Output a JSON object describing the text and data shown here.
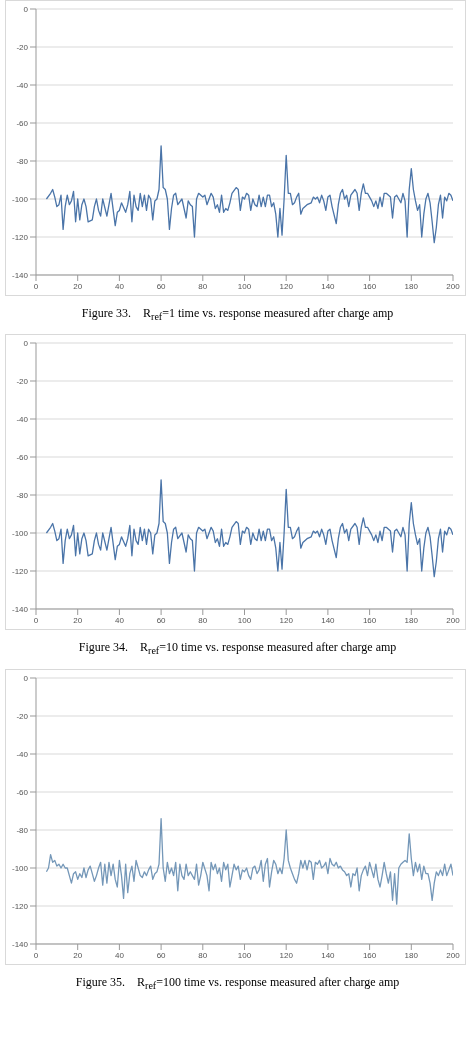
{
  "chart_data": [
    {
      "type": "line",
      "title": "Figure 33.    R$_{ref}$=1 time vs. response measured after charge amp",
      "color": "#4a74a8",
      "marker": "none",
      "line_style": "solid",
      "grid": "y",
      "legend": false,
      "xlim": [
        0,
        200
      ],
      "xticks": [
        0,
        20,
        40,
        60,
        80,
        100,
        120,
        140,
        160,
        180,
        200
      ],
      "ylim": [
        -140,
        0
      ],
      "yticks": [
        -140,
        -120,
        -100,
        -80,
        -60,
        -40,
        -20,
        0
      ],
      "x": [
        5,
        7,
        8,
        9,
        10,
        11,
        12,
        13,
        14,
        15,
        16,
        17,
        18,
        19,
        20,
        21,
        22,
        23,
        24,
        25,
        27,
        28,
        29,
        30,
        31,
        32,
        34,
        35,
        36,
        38,
        39,
        40,
        41,
        43,
        44,
        45,
        46,
        47,
        48,
        49,
        50,
        51,
        52,
        53,
        54,
        55,
        56,
        57,
        58,
        59,
        60,
        61,
        62,
        63,
        64,
        65,
        66,
        67,
        68,
        70,
        72,
        73,
        74,
        75,
        76,
        77,
        78,
        80,
        81,
        82,
        84,
        85,
        86,
        87,
        88,
        89,
        90,
        91,
        92,
        93,
        94,
        96,
        97,
        98,
        99,
        100,
        101,
        102,
        103,
        104,
        105,
        106,
        107,
        108,
        109,
        110,
        111,
        112,
        113,
        114,
        115,
        116,
        117,
        118,
        119,
        120,
        121,
        122,
        123,
        124,
        125,
        126,
        127,
        128,
        130,
        132,
        133,
        134,
        135,
        136,
        137,
        138,
        139,
        140,
        141,
        142,
        144,
        145,
        146,
        147,
        148,
        149,
        150,
        151,
        153,
        154,
        155,
        156,
        157,
        158,
        159,
        160,
        161,
        162,
        163,
        164,
        165,
        166,
        167,
        168,
        170,
        171,
        172,
        173,
        175,
        176,
        177,
        178,
        179,
        180,
        181,
        182,
        183,
        184,
        185,
        186,
        187,
        188,
        189,
        190,
        191,
        192,
        193,
        194,
        195,
        196,
        197,
        198,
        199,
        200
      ],
      "values": [
        -100,
        -97,
        -95,
        -99,
        -104,
        -103,
        -98,
        -116,
        -104,
        -98,
        -103,
        -101,
        -96,
        -112,
        -100,
        -111,
        -103,
        -100,
        -104,
        -112,
        -111,
        -104,
        -100,
        -106,
        -109,
        -100,
        -109,
        -103,
        -97,
        -114,
        -107,
        -106,
        -102,
        -107,
        -103,
        -96,
        -112,
        -98,
        -104,
        -106,
        -97,
        -104,
        -98,
        -106,
        -98,
        -100,
        -111,
        -101,
        -100,
        -95,
        -72,
        -94,
        -95,
        -100,
        -116,
        -105,
        -98,
        -97,
        -103,
        -100,
        -110,
        -101,
        -103,
        -104,
        -120,
        -100,
        -97,
        -99,
        -98,
        -103,
        -97,
        -99,
        -105,
        -103,
        -107,
        -98,
        -107,
        -105,
        -106,
        -102,
        -97,
        -94,
        -95,
        -106,
        -99,
        -100,
        -97,
        -98,
        -106,
        -100,
        -103,
        -104,
        -98,
        -104,
        -99,
        -104,
        -98,
        -98,
        -104,
        -102,
        -108,
        -120,
        -105,
        -119,
        -100,
        -77,
        -97,
        -97,
        -103,
        -102,
        -99,
        -97,
        -108,
        -105,
        -103,
        -102,
        -99,
        -100,
        -99,
        -102,
        -98,
        -101,
        -106,
        -99,
        -98,
        -104,
        -113,
        -103,
        -97,
        -95,
        -100,
        -98,
        -104,
        -98,
        -95,
        -97,
        -106,
        -97,
        -92,
        -97,
        -97,
        -99,
        -101,
        -104,
        -101,
        -105,
        -99,
        -104,
        -97,
        -97,
        -99,
        -110,
        -99,
        -98,
        -102,
        -97,
        -101,
        -120,
        -95,
        -84,
        -95,
        -101,
        -106,
        -103,
        -120,
        -108,
        -100,
        -97,
        -102,
        -112,
        -123,
        -115,
        -103,
        -98,
        -110,
        -99,
        -101,
        -97,
        -98,
        -101
      ]
    },
    {
      "type": "line",
      "title": "Figure 34.    R$_{ref}$=10 time vs. response measured after charge amp",
      "color": "#4a74a8",
      "marker": "none",
      "line_style": "solid",
      "grid": "y",
      "legend": false,
      "xlim": [
        0,
        200
      ],
      "xticks": [
        0,
        20,
        40,
        60,
        80,
        100,
        120,
        140,
        160,
        180,
        200
      ],
      "ylim": [
        -140,
        0
      ],
      "yticks": [
        -140,
        -120,
        -100,
        -80,
        -60,
        -40,
        -20,
        0
      ],
      "x": [
        5,
        7,
        8,
        9,
        10,
        11,
        12,
        13,
        14,
        15,
        16,
        17,
        18,
        19,
        20,
        21,
        22,
        23,
        24,
        25,
        27,
        28,
        29,
        30,
        31,
        32,
        34,
        35,
        36,
        38,
        39,
        40,
        41,
        43,
        44,
        45,
        46,
        47,
        48,
        49,
        50,
        51,
        52,
        53,
        54,
        55,
        56,
        57,
        58,
        59,
        60,
        61,
        62,
        63,
        64,
        65,
        66,
        67,
        68,
        70,
        72,
        73,
        74,
        75,
        76,
        77,
        78,
        80,
        81,
        82,
        84,
        85,
        86,
        87,
        88,
        89,
        90,
        91,
        92,
        93,
        94,
        96,
        97,
        98,
        99,
        100,
        101,
        102,
        103,
        104,
        105,
        106,
        107,
        108,
        109,
        110,
        111,
        112,
        113,
        114,
        115,
        116,
        117,
        118,
        119,
        120,
        121,
        122,
        123,
        124,
        125,
        126,
        127,
        128,
        130,
        132,
        133,
        134,
        135,
        136,
        137,
        138,
        139,
        140,
        141,
        142,
        144,
        145,
        146,
        147,
        148,
        149,
        150,
        151,
        153,
        154,
        155,
        156,
        157,
        158,
        159,
        160,
        161,
        162,
        163,
        164,
        165,
        166,
        167,
        168,
        170,
        171,
        172,
        173,
        175,
        176,
        177,
        178,
        179,
        180,
        181,
        182,
        183,
        184,
        185,
        186,
        187,
        188,
        189,
        190,
        191,
        192,
        193,
        194,
        195,
        196,
        197,
        198,
        199,
        200
      ],
      "values": [
        -100,
        -97,
        -95,
        -99,
        -104,
        -103,
        -98,
        -116,
        -104,
        -98,
        -103,
        -101,
        -96,
        -112,
        -100,
        -111,
        -103,
        -100,
        -104,
        -112,
        -111,
        -104,
        -100,
        -106,
        -109,
        -100,
        -109,
        -103,
        -97,
        -114,
        -107,
        -106,
        -102,
        -107,
        -103,
        -96,
        -112,
        -98,
        -104,
        -106,
        -97,
        -104,
        -98,
        -106,
        -98,
        -100,
        -111,
        -101,
        -100,
        -95,
        -72,
        -94,
        -95,
        -100,
        -116,
        -105,
        -98,
        -97,
        -103,
        -100,
        -110,
        -101,
        -103,
        -104,
        -120,
        -100,
        -97,
        -99,
        -98,
        -103,
        -97,
        -99,
        -105,
        -103,
        -107,
        -98,
        -107,
        -105,
        -106,
        -102,
        -97,
        -94,
        -95,
        -106,
        -99,
        -100,
        -97,
        -98,
        -106,
        -100,
        -103,
        -104,
        -98,
        -104,
        -99,
        -104,
        -98,
        -98,
        -104,
        -102,
        -108,
        -120,
        -105,
        -119,
        -100,
        -77,
        -97,
        -97,
        -103,
        -102,
        -99,
        -97,
        -108,
        -105,
        -103,
        -102,
        -99,
        -100,
        -99,
        -102,
        -98,
        -101,
        -106,
        -99,
        -98,
        -104,
        -113,
        -103,
        -97,
        -95,
        -100,
        -98,
        -104,
        -98,
        -95,
        -97,
        -106,
        -97,
        -92,
        -97,
        -97,
        -99,
        -101,
        -104,
        -101,
        -105,
        -99,
        -104,
        -97,
        -97,
        -99,
        -110,
        -99,
        -98,
        -102,
        -97,
        -101,
        -120,
        -95,
        -84,
        -95,
        -101,
        -106,
        -103,
        -120,
        -108,
        -100,
        -97,
        -102,
        -112,
        -123,
        -115,
        -103,
        -98,
        -110,
        -99,
        -101,
        -97,
        -98,
        -101
      ]
    },
    {
      "type": "line",
      "title": "Figure 35.    R$_{ref}$=100 time vs. response measured after charge amp",
      "color": "#7497b8",
      "marker": "none",
      "line_style": "solid",
      "grid": "y",
      "legend": false,
      "xlim": [
        0,
        200
      ],
      "xticks": [
        0,
        20,
        40,
        60,
        80,
        100,
        120,
        140,
        160,
        180,
        200
      ],
      "ylim": [
        -140,
        0
      ],
      "yticks": [
        -140,
        -120,
        -100,
        -80,
        -60,
        -40,
        -20,
        0
      ],
      "x": [
        5,
        6,
        7,
        8,
        9,
        10,
        11,
        12,
        13,
        14,
        15,
        16,
        17,
        18,
        19,
        20,
        21,
        22,
        23,
        24,
        25,
        26,
        27,
        28,
        29,
        30,
        31,
        32,
        33,
        34,
        35,
        36,
        37,
        38,
        39,
        40,
        41,
        42,
        43,
        44,
        45,
        46,
        47,
        48,
        49,
        50,
        51,
        52,
        53,
        54,
        55,
        56,
        57,
        58,
        59,
        60,
        61,
        62,
        63,
        64,
        65,
        66,
        67,
        68,
        69,
        70,
        71,
        72,
        73,
        74,
        75,
        76,
        77,
        78,
        79,
        80,
        82,
        83,
        84,
        85,
        86,
        87,
        88,
        89,
        90,
        91,
        92,
        93,
        94,
        95,
        96,
        97,
        98,
        99,
        100,
        101,
        102,
        103,
        104,
        105,
        106,
        107,
        108,
        109,
        110,
        111,
        112,
        113,
        114,
        115,
        116,
        117,
        118,
        119,
        120,
        121,
        122,
        123,
        124,
        125,
        126,
        127,
        128,
        129,
        130,
        131,
        132,
        133,
        134,
        135,
        136,
        137,
        138,
        139,
        140,
        141,
        142,
        143,
        144,
        145,
        146,
        147,
        148,
        149,
        150,
        151,
        152,
        153,
        154,
        155,
        156,
        157,
        158,
        159,
        160,
        161,
        162,
        163,
        164,
        165,
        166,
        167,
        168,
        169,
        170,
        171,
        172,
        173,
        174,
        175,
        176,
        177,
        178,
        179,
        180,
        181,
        182,
        183,
        184,
        185,
        186,
        187,
        188,
        189,
        190,
        191,
        192,
        193,
        194,
        195,
        196,
        197,
        198,
        199,
        200
      ],
      "values": [
        -102,
        -100,
        -93,
        -97,
        -96,
        -99,
        -98,
        -100,
        -98,
        -100,
        -100,
        -104,
        -108,
        -103,
        -102,
        -106,
        -103,
        -105,
        -100,
        -105,
        -101,
        -99,
        -103,
        -107,
        -104,
        -100,
        -97,
        -109,
        -98,
        -108,
        -97,
        -104,
        -98,
        -106,
        -110,
        -96,
        -104,
        -116,
        -98,
        -113,
        -103,
        -99,
        -107,
        -96,
        -100,
        -104,
        -105,
        -102,
        -104,
        -101,
        -99,
        -106,
        -103,
        -102,
        -98,
        -74,
        -100,
        -107,
        -97,
        -103,
        -100,
        -104,
        -97,
        -112,
        -98,
        -104,
        -106,
        -98,
        -104,
        -102,
        -104,
        -106,
        -98,
        -109,
        -104,
        -97,
        -104,
        -112,
        -97,
        -101,
        -98,
        -103,
        -100,
        -107,
        -97,
        -101,
        -98,
        -110,
        -104,
        -98,
        -101,
        -99,
        -106,
        -101,
        -102,
        -100,
        -104,
        -106,
        -100,
        -99,
        -103,
        -101,
        -96,
        -107,
        -98,
        -95,
        -110,
        -102,
        -96,
        -98,
        -103,
        -100,
        -103,
        -95,
        -80,
        -96,
        -100,
        -103,
        -106,
        -108,
        -103,
        -96,
        -100,
        -96,
        -101,
        -96,
        -97,
        -106,
        -97,
        -98,
        -96,
        -100,
        -99,
        -97,
        -103,
        -95,
        -98,
        -99,
        -97,
        -100,
        -99,
        -101,
        -102,
        -104,
        -103,
        -110,
        -103,
        -104,
        -100,
        -112,
        -104,
        -101,
        -99,
        -104,
        -97,
        -101,
        -105,
        -98,
        -106,
        -110,
        -104,
        -97,
        -103,
        -108,
        -102,
        -117,
        -103,
        -119,
        -100,
        -98,
        -97,
        -96,
        -97,
        -82,
        -95,
        -104,
        -97,
        -102,
        -98,
        -106,
        -99,
        -103,
        -103,
        -108,
        -117,
        -108,
        -102,
        -104,
        -101,
        -104,
        -98,
        -104,
        -101,
        -98,
        -104
      ]
    }
  ]
}
